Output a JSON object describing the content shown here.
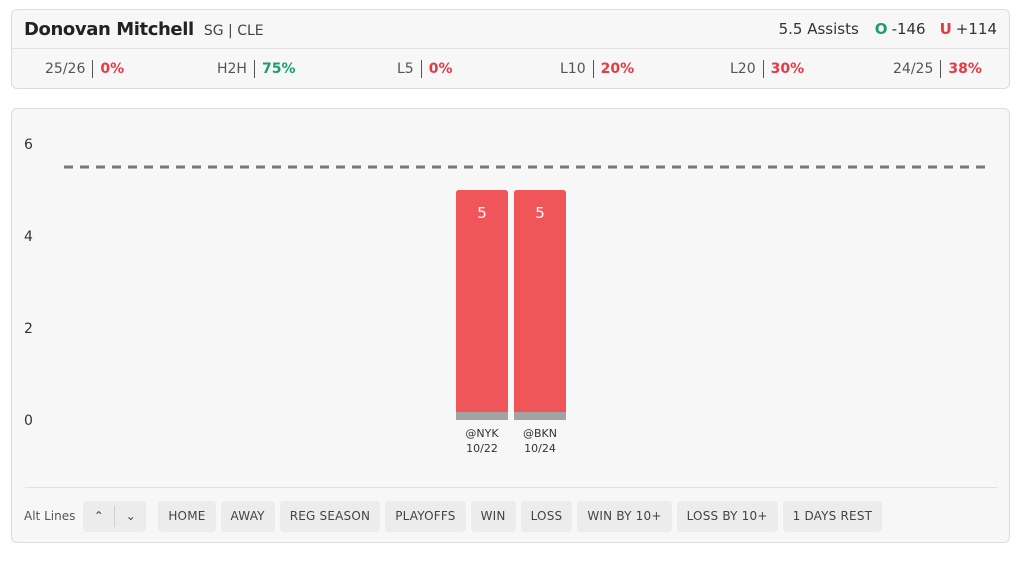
{
  "player": {
    "name": "Donovan Mitchell",
    "meta": "SG | CLE"
  },
  "prop": {
    "line": "5.5 Assists",
    "over_letter": "O",
    "over_odds": "-146",
    "under_letter": "U",
    "under_odds": "+114"
  },
  "stats": [
    {
      "label": "25/26",
      "value": "0%",
      "color": "#e23b43"
    },
    {
      "label": "H2H",
      "value": "75%",
      "color": "#1e9e6b"
    },
    {
      "label": "L5",
      "value": "0%",
      "color": "#e23b43"
    },
    {
      "label": "L10",
      "value": "20%",
      "color": "#e23b43"
    },
    {
      "label": "L20",
      "value": "30%",
      "color": "#e23b43"
    },
    {
      "label": "24/25",
      "value": "38%",
      "color": "#e23b43"
    }
  ],
  "chart_data": {
    "type": "bar",
    "y_ticks": [
      0,
      2,
      4,
      6
    ],
    "ylim": [
      0,
      6.5
    ],
    "threshold": 5.5,
    "bar_color": "#f0555a",
    "bars": [
      {
        "opponent": "@NYK",
        "date": "10/22",
        "value": 5,
        "label": "5"
      },
      {
        "opponent": "@BKN",
        "date": "10/24",
        "value": 5,
        "label": "5"
      }
    ]
  },
  "filters": {
    "alt_lines_label": "Alt Lines",
    "up_symbol": "⌃",
    "down_symbol": "⌄",
    "buttons": [
      "HOME",
      "AWAY",
      "REG SEASON",
      "PLAYOFFS",
      "WIN",
      "LOSS",
      "WIN BY 10+",
      "LOSS BY 10+",
      "1 DAYS REST"
    ]
  }
}
